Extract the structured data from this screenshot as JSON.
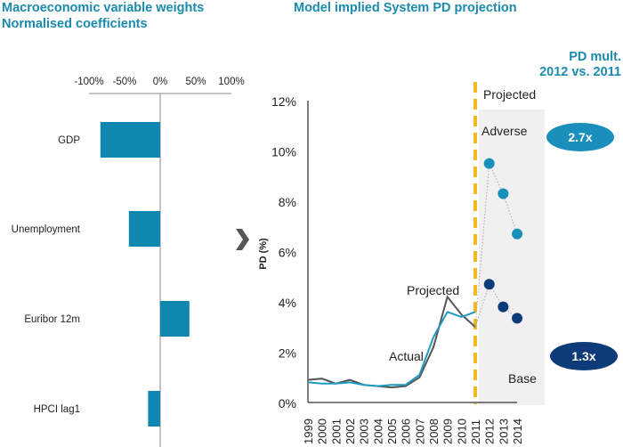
{
  "titles": {
    "left_line1": "Macroeconomic variable weights",
    "left_line2": "Normalised coefficients",
    "right": "Model implied System PD projection",
    "mult_line1": "PD mult.",
    "mult_line2": "2012 vs. 2011"
  },
  "colors": {
    "title": "#1a8aad",
    "bar": "#0f87b0",
    "actual_line": "#1f9ac0",
    "projected_line": "#555555",
    "divider": "#f5b820",
    "projection_area": "#f0f0f0",
    "adverse_dot": "#1a8fbb",
    "base_dot": "#0d3b7a",
    "arrow": "#555555"
  },
  "chart_data": [
    {
      "type": "bar",
      "orientation": "horizontal",
      "title": "Macroeconomic variable weights / Normalised coefficients",
      "categories": [
        "GDP",
        "Unemployment",
        "Euribor 12m",
        "HPCI lag1"
      ],
      "values": [
        -84,
        -44,
        41,
        -17
      ],
      "unit": "%",
      "xlim": [
        -100,
        100
      ],
      "xticks": [
        "-100%",
        "-50%",
        "0%",
        "50%",
        "100%"
      ],
      "xtick_values": [
        -100,
        -50,
        0,
        50,
        100
      ]
    },
    {
      "type": "line",
      "title": "Model implied System PD projection",
      "ylabel": "PD (%)",
      "ylim": [
        0,
        12
      ],
      "yticks": [
        "0%",
        "2%",
        "4%",
        "6%",
        "8%",
        "10%",
        "12%"
      ],
      "ytick_values": [
        0,
        2,
        4,
        6,
        8,
        10,
        12
      ],
      "x": [
        "1999",
        "2000",
        "2001",
        "2002",
        "2003",
        "2004",
        "2005",
        "2006",
        "2007",
        "2008",
        "2009",
        "2010",
        "2011",
        "2012",
        "2013",
        "2014"
      ],
      "series": [
        {
          "name": "Actual",
          "label": "Actual",
          "x": [
            "1999",
            "2000",
            "2001",
            "2002",
            "2003",
            "2004",
            "2005",
            "2006",
            "2007",
            "2008",
            "2009",
            "2010",
            "2011"
          ],
          "values": [
            0.8,
            0.75,
            0.75,
            0.8,
            0.7,
            0.65,
            0.7,
            0.7,
            1.1,
            2.6,
            3.6,
            3.4,
            3.6
          ]
        },
        {
          "name": "Projected",
          "label": "Projected",
          "x": [
            "1999",
            "2000",
            "2001",
            "2002",
            "2003",
            "2004",
            "2005",
            "2006",
            "2007",
            "2008",
            "2009",
            "2010",
            "2011"
          ],
          "values": [
            0.9,
            0.95,
            0.75,
            0.9,
            0.7,
            0.65,
            0.6,
            0.65,
            1.0,
            2.2,
            4.2,
            3.5,
            3.0
          ]
        },
        {
          "name": "Adverse",
          "label": "Adverse",
          "x": [
            "2012",
            "2013",
            "2014"
          ],
          "values": [
            9.5,
            8.3,
            6.7
          ]
        },
        {
          "name": "Base",
          "label": "Base",
          "x": [
            "2012",
            "2013",
            "2014"
          ],
          "values": [
            4.7,
            3.8,
            3.35
          ]
        }
      ],
      "annotations": {
        "projection_start": "2011",
        "projection_label": "Projected",
        "adverse_multiplier": "2.7x",
        "base_multiplier": "1.3x"
      }
    }
  ]
}
